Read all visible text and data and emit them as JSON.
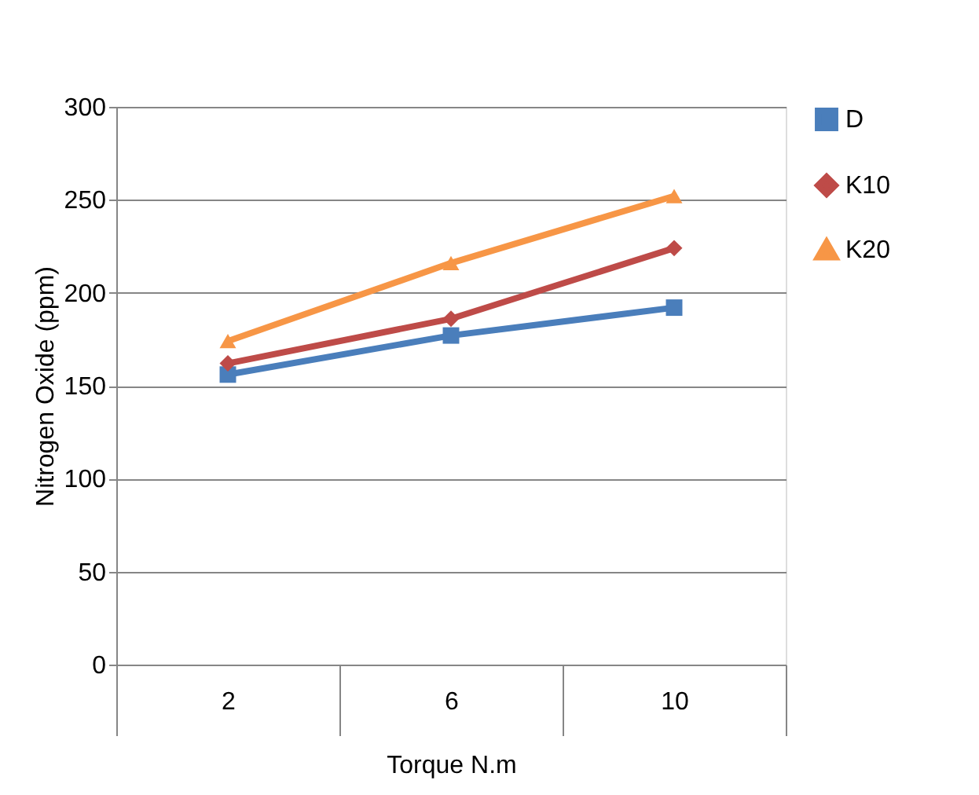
{
  "chart_data": {
    "type": "line",
    "xlabel": "Torque N.m",
    "ylabel": "Nitrogen Oxide (ppm)",
    "categories": [
      "2",
      "6",
      "10"
    ],
    "series": [
      {
        "name": "D",
        "color": "#4a7ebb",
        "values": [
          156,
          177,
          192
        ],
        "marker": "square"
      },
      {
        "name": "K10",
        "color": "#be4b48",
        "values": [
          162,
          186,
          224
        ],
        "marker": "diamond"
      },
      {
        "name": "K20",
        "color": "#f79646",
        "values": [
          174,
          216,
          252
        ],
        "marker": "triangle"
      }
    ],
    "ylim": [
      0,
      300
    ],
    "yticks": [
      0,
      50,
      100,
      150,
      200,
      250,
      300
    ],
    "grid": "y",
    "legend": "right",
    "line_style": "solid"
  }
}
